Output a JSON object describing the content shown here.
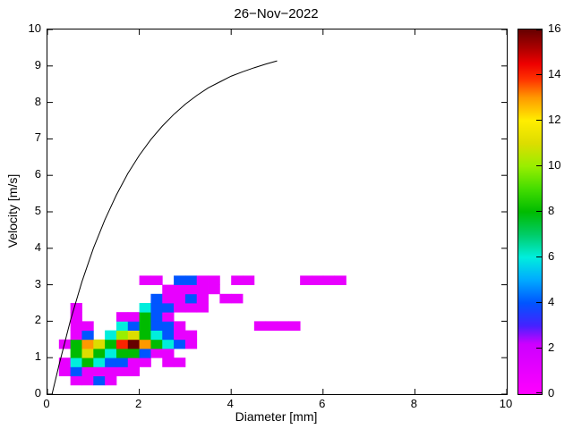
{
  "title": "26−Nov−2022",
  "colorbar": {
    "min": 0,
    "max": 16,
    "ticks": [
      0,
      2,
      4,
      6,
      8,
      10,
      12,
      14,
      16
    ],
    "stops": [
      [
        0,
        "#ff00ff"
      ],
      [
        2.2,
        "#cc00ff"
      ],
      [
        3,
        "#4422ff"
      ],
      [
        4,
        "#0055ff"
      ],
      [
        5,
        "#00aaff"
      ],
      [
        6,
        "#00eedd"
      ],
      [
        7,
        "#00cc66"
      ],
      [
        8,
        "#00bb00"
      ],
      [
        9,
        "#44dd00"
      ],
      [
        10,
        "#99ee00"
      ],
      [
        11,
        "#dddd00"
      ],
      [
        12,
        "#ffee00"
      ],
      [
        13,
        "#ff9900"
      ],
      [
        13.8,
        "#ff3300"
      ],
      [
        14.5,
        "#ee0000"
      ],
      [
        15.2,
        "#aa0000"
      ],
      [
        16,
        "#660000"
      ]
    ]
  },
  "chart_data": {
    "type": "heatmap",
    "title": "26−Nov−2022",
    "xlabel": "Diameter [mm]",
    "ylabel": "Velocity [m/s]",
    "xlim": [
      0,
      10
    ],
    "ylim": [
      0,
      10
    ],
    "xticks": [
      0,
      2,
      4,
      6,
      8,
      10
    ],
    "yticks": [
      0,
      1,
      2,
      3,
      4,
      5,
      6,
      7,
      8,
      9,
      10
    ],
    "grid": false,
    "cell_size": [
      0.25,
      0.25
    ],
    "cells": [
      [
        0.5,
        0.25,
        1
      ],
      [
        0.75,
        0.25,
        1
      ],
      [
        1.0,
        0.25,
        4
      ],
      [
        1.25,
        0.25,
        1
      ],
      [
        0.25,
        0.5,
        1
      ],
      [
        0.5,
        0.5,
        4
      ],
      [
        0.75,
        0.5,
        1
      ],
      [
        1.0,
        0.5,
        1
      ],
      [
        1.25,
        0.5,
        1
      ],
      [
        1.5,
        0.5,
        1
      ],
      [
        1.75,
        0.5,
        1
      ],
      [
        0.25,
        0.75,
        1
      ],
      [
        0.5,
        0.75,
        6
      ],
      [
        0.75,
        0.75,
        8
      ],
      [
        1.0,
        0.75,
        6
      ],
      [
        1.25,
        0.75,
        4
      ],
      [
        1.5,
        0.75,
        4
      ],
      [
        1.75,
        0.75,
        1
      ],
      [
        2.0,
        0.75,
        1
      ],
      [
        2.5,
        0.75,
        1
      ],
      [
        2.75,
        0.75,
        1
      ],
      [
        0.5,
        1.0,
        8
      ],
      [
        0.75,
        1.0,
        11
      ],
      [
        1.0,
        1.0,
        8
      ],
      [
        1.25,
        1.0,
        6
      ],
      [
        1.5,
        1.0,
        8
      ],
      [
        1.75,
        1.0,
        8
      ],
      [
        2.0,
        1.0,
        4
      ],
      [
        2.25,
        1.0,
        1
      ],
      [
        2.5,
        1.0,
        1
      ],
      [
        0.25,
        1.25,
        1
      ],
      [
        0.5,
        1.25,
        8
      ],
      [
        0.75,
        1.25,
        13
      ],
      [
        1.0,
        1.25,
        11
      ],
      [
        1.25,
        1.25,
        8
      ],
      [
        1.5,
        1.25,
        14
      ],
      [
        1.75,
        1.25,
        16
      ],
      [
        2.0,
        1.25,
        13
      ],
      [
        2.25,
        1.25,
        8
      ],
      [
        2.5,
        1.25,
        6
      ],
      [
        2.75,
        1.25,
        4
      ],
      [
        3.0,
        1.25,
        1
      ],
      [
        0.5,
        1.5,
        1
      ],
      [
        0.75,
        1.5,
        4
      ],
      [
        1.25,
        1.5,
        6
      ],
      [
        1.5,
        1.5,
        10
      ],
      [
        1.75,
        1.5,
        11
      ],
      [
        2.0,
        1.5,
        8
      ],
      [
        2.25,
        1.5,
        6
      ],
      [
        2.5,
        1.5,
        4
      ],
      [
        2.75,
        1.5,
        1
      ],
      [
        3.0,
        1.5,
        1
      ],
      [
        0.5,
        1.75,
        1
      ],
      [
        0.75,
        1.75,
        1
      ],
      [
        1.5,
        1.75,
        6
      ],
      [
        1.75,
        1.75,
        4
      ],
      [
        2.0,
        1.75,
        8
      ],
      [
        2.25,
        1.75,
        4
      ],
      [
        2.5,
        1.75,
        4
      ],
      [
        2.75,
        1.75,
        1
      ],
      [
        4.5,
        1.75,
        1
      ],
      [
        4.75,
        1.75,
        1
      ],
      [
        5.0,
        1.75,
        1
      ],
      [
        5.25,
        1.75,
        1
      ],
      [
        0.5,
        2.0,
        1
      ],
      [
        1.5,
        2.0,
        1
      ],
      [
        1.75,
        2.0,
        1
      ],
      [
        2.0,
        2.0,
        8
      ],
      [
        2.25,
        2.0,
        4
      ],
      [
        2.5,
        2.0,
        1
      ],
      [
        0.5,
        2.25,
        1
      ],
      [
        2.0,
        2.25,
        6
      ],
      [
        2.25,
        2.25,
        4
      ],
      [
        2.5,
        2.25,
        4
      ],
      [
        2.75,
        2.25,
        1
      ],
      [
        3.0,
        2.25,
        1
      ],
      [
        3.25,
        2.25,
        1
      ],
      [
        2.25,
        2.5,
        4
      ],
      [
        2.5,
        2.5,
        1
      ],
      [
        2.75,
        2.5,
        1
      ],
      [
        3.0,
        2.5,
        4
      ],
      [
        3.25,
        2.5,
        1
      ],
      [
        3.75,
        2.5,
        1
      ],
      [
        4.0,
        2.5,
        1
      ],
      [
        2.5,
        2.75,
        1
      ],
      [
        2.75,
        2.75,
        1
      ],
      [
        3.0,
        2.75,
        1
      ],
      [
        3.25,
        2.75,
        1
      ],
      [
        3.5,
        2.75,
        1
      ],
      [
        2.0,
        3.0,
        1
      ],
      [
        2.25,
        3.0,
        1
      ],
      [
        2.75,
        3.0,
        4
      ],
      [
        3.0,
        3.0,
        4
      ],
      [
        3.25,
        3.0,
        1
      ],
      [
        3.5,
        3.0,
        1
      ],
      [
        4.0,
        3.0,
        1
      ],
      [
        4.25,
        3.0,
        1
      ],
      [
        5.5,
        3.0,
        1
      ],
      [
        5.75,
        3.0,
        1
      ],
      [
        6.0,
        3.0,
        1
      ],
      [
        6.25,
        3.0,
        1
      ]
    ],
    "curve": {
      "name": "terminal-velocity-curve",
      "x": [
        0.1,
        0.25,
        0.5,
        0.75,
        1.0,
        1.25,
        1.5,
        1.75,
        2.0,
        2.25,
        2.5,
        2.75,
        3.0,
        3.25,
        3.5,
        3.75,
        4.0,
        4.25,
        4.5,
        4.75,
        5.0
      ],
      "y": [
        0.0,
        0.79,
        2.02,
        3.08,
        4.0,
        4.78,
        5.46,
        6.05,
        6.55,
        6.98,
        7.35,
        7.67,
        7.95,
        8.19,
        8.4,
        8.56,
        8.72,
        8.84,
        8.95,
        9.05,
        9.14
      ]
    }
  }
}
